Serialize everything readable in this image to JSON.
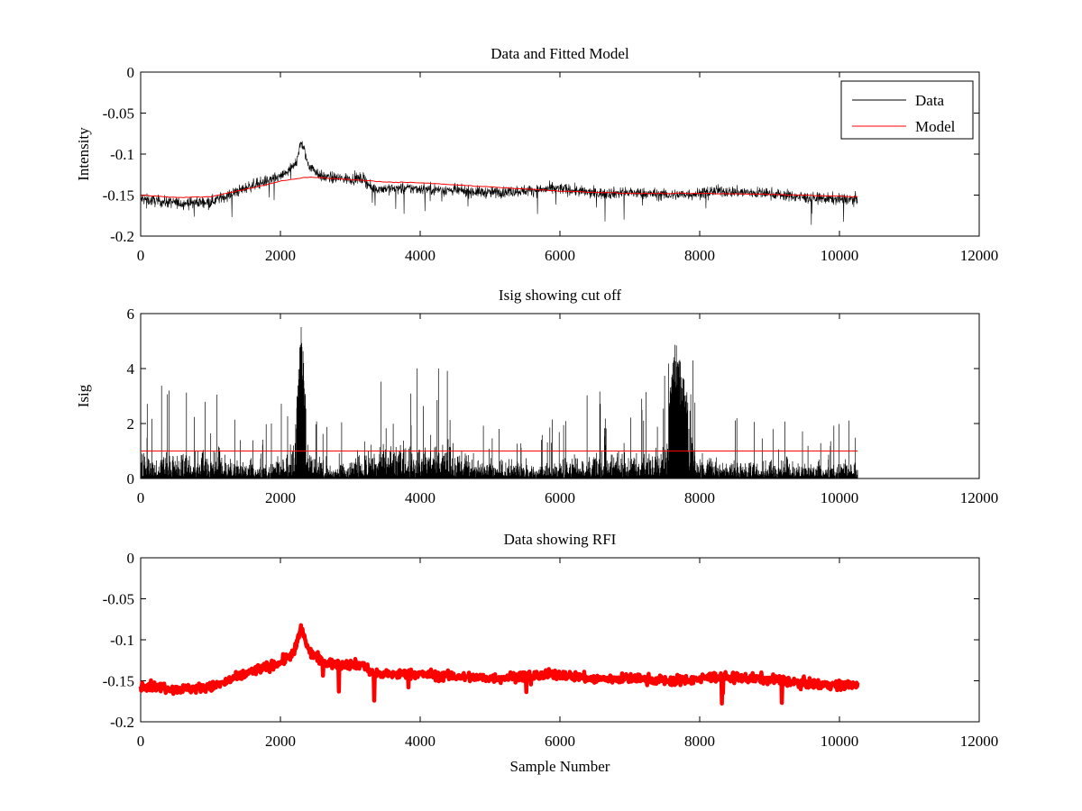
{
  "chart_data": [
    {
      "type": "line",
      "title": "Data and Fitted Model",
      "xlabel": "",
      "ylabel": "Intensity",
      "xlim": [
        0,
        12000
      ],
      "ylim": [
        -0.2,
        0
      ],
      "x_ticks": [
        "0",
        "2000",
        "4000",
        "6000",
        "8000",
        "10000",
        "12000"
      ],
      "y_ticks": [
        "0",
        "-0.05",
        "-0.1",
        "-0.15",
        "-0.2"
      ],
      "grid": false,
      "legend": "top-right",
      "series": [
        {
          "name": "Data",
          "color": "#000000",
          "style": "noisy-line",
          "x": [
            0,
            300,
            600,
            1000,
            1200,
            1600,
            2000,
            2200,
            2300,
            2400,
            2600,
            2900,
            3200,
            3300,
            4000,
            5000,
            6000,
            6500,
            7000,
            7600,
            8000,
            8200,
            9000,
            9500,
            10000,
            10260
          ],
          "y": [
            -0.155,
            -0.158,
            -0.16,
            -0.158,
            -0.152,
            -0.138,
            -0.128,
            -0.115,
            -0.085,
            -0.113,
            -0.128,
            -0.13,
            -0.13,
            -0.142,
            -0.142,
            -0.147,
            -0.142,
            -0.148,
            -0.147,
            -0.15,
            -0.148,
            -0.145,
            -0.148,
            -0.153,
            -0.155,
            -0.155
          ],
          "noise_amplitude": 0.012
        },
        {
          "name": "Model",
          "color": "#ff0000",
          "style": "line",
          "x": [
            0,
            500,
            1000,
            1500,
            2000,
            2400,
            3000,
            3500,
            4000,
            5000,
            6000,
            7000,
            8000,
            9000,
            10260
          ],
          "y": [
            -0.15,
            -0.153,
            -0.152,
            -0.143,
            -0.133,
            -0.128,
            -0.131,
            -0.134,
            -0.135,
            -0.14,
            -0.145,
            -0.148,
            -0.148,
            -0.149,
            -0.152
          ]
        }
      ]
    },
    {
      "type": "line",
      "title": "Isig showing cut off",
      "xlabel": "",
      "ylabel": "Isig",
      "xlim": [
        0,
        12000
      ],
      "ylim": [
        0,
        6
      ],
      "x_ticks": [
        "0",
        "2000",
        "4000",
        "6000",
        "8000",
        "10000",
        "12000"
      ],
      "y_ticks": [
        "0",
        "2",
        "4",
        "6"
      ],
      "grid": false,
      "series": [
        {
          "color": "#000000",
          "style": "spiky",
          "x": [
            0,
            500,
            1000,
            1500,
            1900,
            2200,
            2300,
            2400,
            2600,
            3000,
            3300,
            4000,
            4500,
            5000,
            6000,
            6500,
            7000,
            7500,
            7650,
            8000,
            9000,
            10260
          ],
          "y": [
            1.3,
            1.4,
            1.4,
            1.0,
            0.9,
            1.6,
            5.8,
            1.6,
            0.8,
            0.9,
            1.6,
            1.8,
            1.6,
            0.8,
            0.9,
            1.3,
            1.2,
            1.5,
            5.1,
            1.0,
            0.9,
            0.9
          ],
          "noise_amplitude": 0.9
        },
        {
          "color": "#ff0000",
          "style": "line",
          "x": [
            0,
            10260
          ],
          "y": [
            1,
            1
          ]
        }
      ]
    },
    {
      "type": "scatter",
      "title": "Data showing RFI",
      "xlabel": "Sample Number",
      "ylabel": "",
      "xlim": [
        0,
        12000
      ],
      "ylim": [
        -0.2,
        0
      ],
      "x_ticks": [
        "0",
        "2000",
        "4000",
        "6000",
        "8000",
        "10000",
        "12000"
      ],
      "y_ticks": [
        "0",
        "-0.05",
        "-0.1",
        "-0.15",
        "-0.2"
      ],
      "grid": false,
      "series": [
        {
          "color": "#ff0000",
          "style": "dense-markers",
          "x": [
            0,
            300,
            600,
            1000,
            1200,
            1600,
            2000,
            2200,
            2300,
            2400,
            2600,
            2900,
            3200,
            3300,
            4000,
            5000,
            6000,
            6500,
            7000,
            7600,
            8000,
            8200,
            9000,
            9500,
            10000,
            10260
          ],
          "y": [
            -0.155,
            -0.158,
            -0.16,
            -0.158,
            -0.152,
            -0.138,
            -0.128,
            -0.115,
            -0.085,
            -0.113,
            -0.128,
            -0.13,
            -0.13,
            -0.142,
            -0.142,
            -0.147,
            -0.142,
            -0.148,
            -0.147,
            -0.15,
            -0.148,
            -0.145,
            -0.148,
            -0.153,
            -0.155,
            -0.155
          ],
          "noise_amplitude": 0.01
        }
      ]
    }
  ]
}
